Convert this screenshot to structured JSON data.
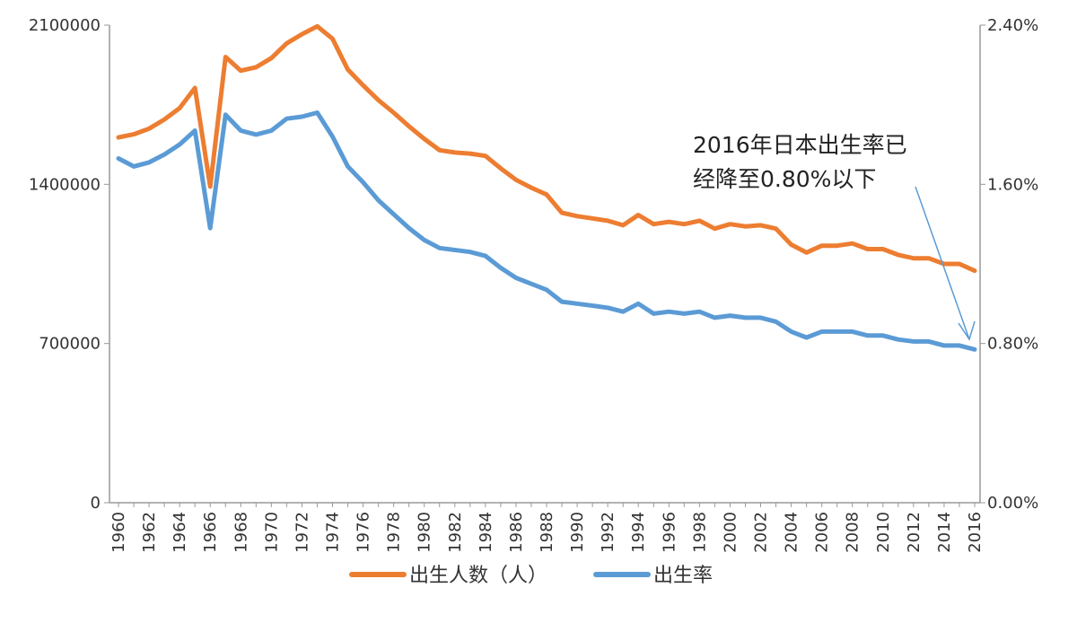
{
  "chart_data": {
    "type": "line",
    "title": "",
    "xlabel": "",
    "ylabel": "",
    "x": [
      1960,
      1961,
      1962,
      1963,
      1964,
      1965,
      1966,
      1967,
      1968,
      1969,
      1970,
      1971,
      1972,
      1973,
      1974,
      1975,
      1976,
      1977,
      1978,
      1979,
      1980,
      1981,
      1982,
      1983,
      1984,
      1985,
      1986,
      1987,
      1988,
      1989,
      1990,
      1991,
      1992,
      1993,
      1994,
      1995,
      1996,
      1997,
      1998,
      1999,
      2000,
      2001,
      2002,
      2003,
      2004,
      2005,
      2006,
      2007,
      2008,
      2009,
      2010,
      2011,
      2012,
      2013,
      2014,
      2015,
      2016
    ],
    "x_tick_labels": [
      "1960",
      "1962",
      "1964",
      "1966",
      "1968",
      "1970",
      "1972",
      "1974",
      "1976",
      "1978",
      "1980",
      "1982",
      "1984",
      "1986",
      "1988",
      "1990",
      "1992",
      "1994",
      "1996",
      "1998",
      "2000",
      "2002",
      "2004",
      "2006",
      "2008",
      "2010",
      "2012",
      "2014",
      "2016"
    ],
    "left_axis": {
      "ylim": [
        0,
        2100000
      ],
      "tick_labels": [
        "0",
        "700000",
        "1400000",
        "2100000"
      ]
    },
    "right_axis": {
      "ylim": [
        0,
        2.4
      ],
      "unit": "%",
      "tick_labels": [
        "0.00%",
        "0.80%",
        "1.60%",
        "2.40%"
      ]
    },
    "grid": false,
    "legend_position": "bottom",
    "series": [
      {
        "name": "出生人数（人）",
        "axis": "left",
        "color": "#ED7D31",
        "values": [
          1606041,
          1620000,
          1645000,
          1685000,
          1735000,
          1823697,
          1390000,
          1960000,
          1900000,
          1915000,
          1955000,
          2020000,
          2060000,
          2095000,
          2040000,
          1905000,
          1835000,
          1770000,
          1715000,
          1655000,
          1600000,
          1550000,
          1540000,
          1535000,
          1525000,
          1470000,
          1420000,
          1385000,
          1355000,
          1275000,
          1260000,
          1250000,
          1240000,
          1220000,
          1265000,
          1225000,
          1235000,
          1225000,
          1240000,
          1205000,
          1225000,
          1215000,
          1220000,
          1205000,
          1135000,
          1100000,
          1130000,
          1130000,
          1140000,
          1115000,
          1115000,
          1090000,
          1075000,
          1075000,
          1050000,
          1050000,
          1020000
        ]
      },
      {
        "name": "出生率",
        "axis": "right",
        "color": "#5B9BD5",
        "values": [
          1.73,
          1.69,
          1.71,
          1.75,
          1.8,
          1.87,
          1.38,
          1.95,
          1.87,
          1.85,
          1.87,
          1.93,
          1.94,
          1.96,
          1.84,
          1.69,
          1.61,
          1.52,
          1.45,
          1.38,
          1.32,
          1.28,
          1.27,
          1.26,
          1.24,
          1.18,
          1.13,
          1.1,
          1.07,
          1.01,
          1.0,
          0.99,
          0.98,
          0.96,
          1.0,
          0.95,
          0.96,
          0.95,
          0.96,
          0.93,
          0.94,
          0.93,
          0.93,
          0.91,
          0.86,
          0.83,
          0.86,
          0.86,
          0.86,
          0.84,
          0.84,
          0.82,
          0.81,
          0.81,
          0.79,
          0.79,
          0.77
        ]
      }
    ],
    "annotations": [
      {
        "text_line1": "2016年日本出生率已",
        "text_line2": "经降至0.80%以下",
        "arrow_to": "2016"
      }
    ]
  }
}
